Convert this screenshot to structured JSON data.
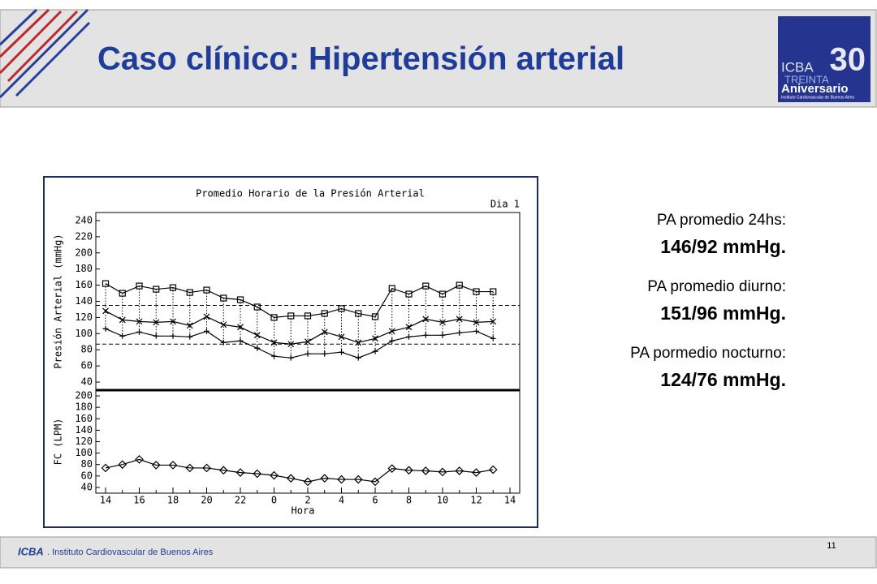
{
  "header": {
    "title": "Caso clínico: Hipertensión arterial"
  },
  "logo": {
    "brand": "ICBA",
    "number": "30",
    "word": "TREINTA",
    "subtitle": "Aniversario",
    "institute": "Instituto Cardiovascular de Buenos Aires"
  },
  "summary": [
    {
      "label": "PA promedio 24hs:",
      "value": "146/92 mmHg."
    },
    {
      "label": "PA promedio diurno:",
      "value": "151/96 mmHg."
    },
    {
      "label": "PA pormedio nocturno:",
      "value": "124/76 mmHg."
    }
  ],
  "footer": {
    "brand": "ICBA",
    "text": ". Instituto Cardiovascular de Buenos Aires",
    "page": "11"
  },
  "chart_data": {
    "type": "line",
    "title": "Promedio Horario de la Presión Arterial",
    "subtitle": "Dia 1",
    "xlabel": "Hora",
    "categories": [
      "14",
      null,
      "16",
      null,
      "18",
      null,
      "20",
      null,
      "22",
      null,
      "0",
      null,
      "2",
      null,
      "4",
      null,
      "6",
      null,
      "8",
      null,
      "10",
      null,
      "12",
      null,
      "14"
    ],
    "panels": [
      {
        "ylabel": "Presión Arterial (mmHg)",
        "ylim": [
          30,
          250
        ],
        "yticks": [
          40,
          60,
          80,
          100,
          120,
          140,
          160,
          180,
          200,
          220,
          240
        ],
        "hlines": [
          135,
          87
        ],
        "series": [
          {
            "marker": "square",
            "color": "#000000",
            "values": [
              162,
              150,
              159,
              155,
              157,
              151,
              154,
              144,
              142,
              133,
              120,
              122,
              122,
              125,
              131,
              125,
              121,
              156,
              149,
              159,
              149,
              160,
              152,
              152,
              null
            ]
          },
          {
            "marker": "x",
            "color": "#000000",
            "values": [
              128,
              117,
              115,
              114,
              115,
              110,
              121,
              111,
              108,
              98,
              89,
              87,
              90,
              102,
              96,
              89,
              94,
              103,
              108,
              118,
              114,
              118,
              114,
              115,
              null
            ]
          },
          {
            "marker": "plus",
            "color": "#000000",
            "values": [
              106,
              97,
              102,
              97,
              97,
              96,
              103,
              89,
              91,
              82,
              72,
              70,
              75,
              75,
              77,
              70,
              78,
              91,
              96,
              98,
              98,
              101,
              103,
              94,
              null
            ]
          }
        ]
      },
      {
        "ylabel": "FC (LPM)",
        "ylim": [
          30,
          210
        ],
        "yticks": [
          40,
          60,
          80,
          100,
          120,
          140,
          160,
          180,
          200
        ],
        "series": [
          {
            "marker": "diamond",
            "color": "#000000",
            "values": [
              74,
              80,
              89,
              79,
              79,
              74,
              74,
              70,
              66,
              64,
              61,
              56,
              50,
              56,
              54,
              54,
              50,
              73,
              70,
              69,
              67,
              69,
              66,
              71,
              null
            ]
          }
        ]
      }
    ]
  }
}
